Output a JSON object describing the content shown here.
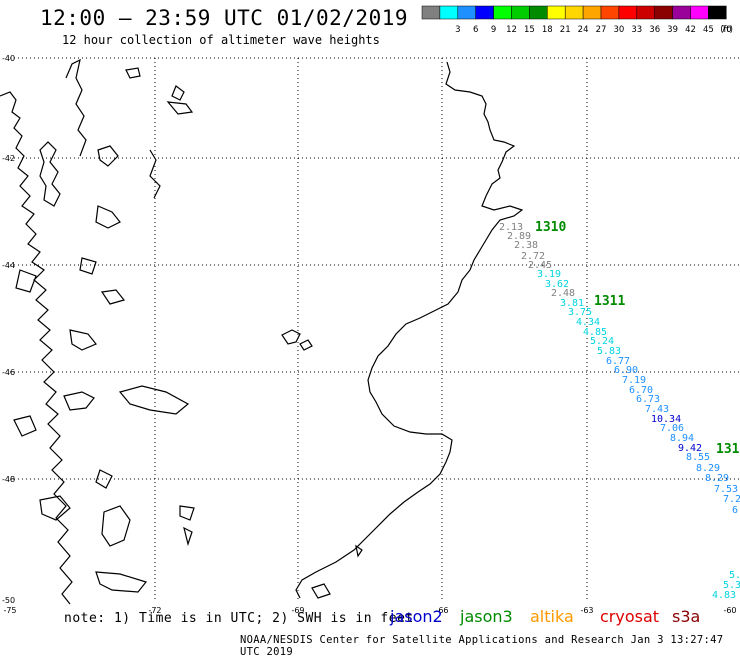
{
  "header": {
    "title": "12:00 – 23:59 UTC 01/02/2019",
    "subtitle": "12 hour collection of altimeter wave heights"
  },
  "legend": {
    "unit_label": "(ft)",
    "bins": [
      {
        "label": "",
        "color": "#808080"
      },
      {
        "label": "3",
        "color": "#00ffff"
      },
      {
        "label": "6",
        "color": "#1e90ff"
      },
      {
        "label": "9",
        "color": "#0000ff"
      },
      {
        "label": "12",
        "color": "#00ff00"
      },
      {
        "label": "15",
        "color": "#00cd00"
      },
      {
        "label": "18",
        "color": "#008b00"
      },
      {
        "label": "21",
        "color": "#ffff00"
      },
      {
        "label": "24",
        "color": "#ffd700"
      },
      {
        "label": "27",
        "color": "#ffa500"
      },
      {
        "label": "30",
        "color": "#ff4500"
      },
      {
        "label": "33",
        "color": "#ff0000"
      },
      {
        "label": "36",
        "color": "#cd0000"
      },
      {
        "label": "39",
        "color": "#8b0000"
      },
      {
        "label": "42",
        "color": "#9a009a"
      },
      {
        "label": "45",
        "color": "#ff00ff"
      },
      {
        "label": "70",
        "color": "#000000"
      }
    ]
  },
  "map": {
    "lon_labels": [
      "-75",
      "-72",
      "-69",
      "-66",
      "-63",
      "-60"
    ],
    "lat_labels": [
      "-40",
      "-42",
      "-44",
      "-46",
      "-48",
      "-50"
    ],
    "times": [
      {
        "label": "1310",
        "color": "#008b00"
      },
      {
        "label": "1311",
        "color": "#008b00"
      },
      {
        "label": "131",
        "color": "#008b00"
      }
    ],
    "readings": [
      {
        "v": "2.13",
        "c": "#808080"
      },
      {
        "v": "2.89",
        "c": "#808080"
      },
      {
        "v": "2.38",
        "c": "#808080"
      },
      {
        "v": "2.72",
        "c": "#808080"
      },
      {
        "v": "2.45",
        "c": "#808080"
      },
      {
        "v": "3.19",
        "c": "#00d5e0"
      },
      {
        "v": "3.62",
        "c": "#00d5e0"
      },
      {
        "v": "2.48",
        "c": "#808080"
      },
      {
        "v": "3.81",
        "c": "#00d5e0"
      },
      {
        "v": "3.75",
        "c": "#00d5e0"
      },
      {
        "v": "4.34",
        "c": "#00d5e0"
      },
      {
        "v": "4.85",
        "c": "#00d5e0"
      },
      {
        "v": "5.24",
        "c": "#00d5e0"
      },
      {
        "v": "5.83",
        "c": "#00d5e0"
      },
      {
        "v": "6.77",
        "c": "#1e90ff"
      },
      {
        "v": "6.90",
        "c": "#1e90ff"
      },
      {
        "v": "7.19",
        "c": "#1e90ff"
      },
      {
        "v": "6.70",
        "c": "#1e90ff"
      },
      {
        "v": "6.73",
        "c": "#1e90ff"
      },
      {
        "v": "7.43",
        "c": "#1e90ff"
      },
      {
        "v": "10.34",
        "c": "#0000cd"
      },
      {
        "v": "7.06",
        "c": "#1e90ff"
      },
      {
        "v": "8.94",
        "c": "#1e90ff"
      },
      {
        "v": "9.42",
        "c": "#0000cd"
      },
      {
        "v": "8.55",
        "c": "#1e90ff"
      },
      {
        "v": "8.29",
        "c": "#1e90ff"
      },
      {
        "v": "8.29",
        "c": "#1e90ff"
      },
      {
        "v": "7.53",
        "c": "#1e90ff"
      },
      {
        "v": "7.2",
        "c": "#1e90ff"
      },
      {
        "v": "6",
        "c": "#1e90ff"
      },
      {
        "v": "5.",
        "c": "#00d5e0"
      },
      {
        "v": "5.3",
        "c": "#00d5e0"
      },
      {
        "v": "4.83",
        "c": "#00d5e0"
      }
    ]
  },
  "footer": {
    "note": "note: 1) Time is in UTC; 2) SWH is in feet",
    "satellites": [
      {
        "name": "jason2",
        "color": "#0000cd"
      },
      {
        "name": "jason3",
        "color": "#008b00"
      },
      {
        "name": "altika",
        "color": "#ff9900"
      },
      {
        "name": "cryosat",
        "color": "#dd0000"
      },
      {
        "name": "s3a",
        "color": "#8b0000"
      }
    ],
    "credit": "NOAA/NESDIS Center for Satellite Applications and Research   Jan  3 13:27:47 UTC 2019"
  }
}
